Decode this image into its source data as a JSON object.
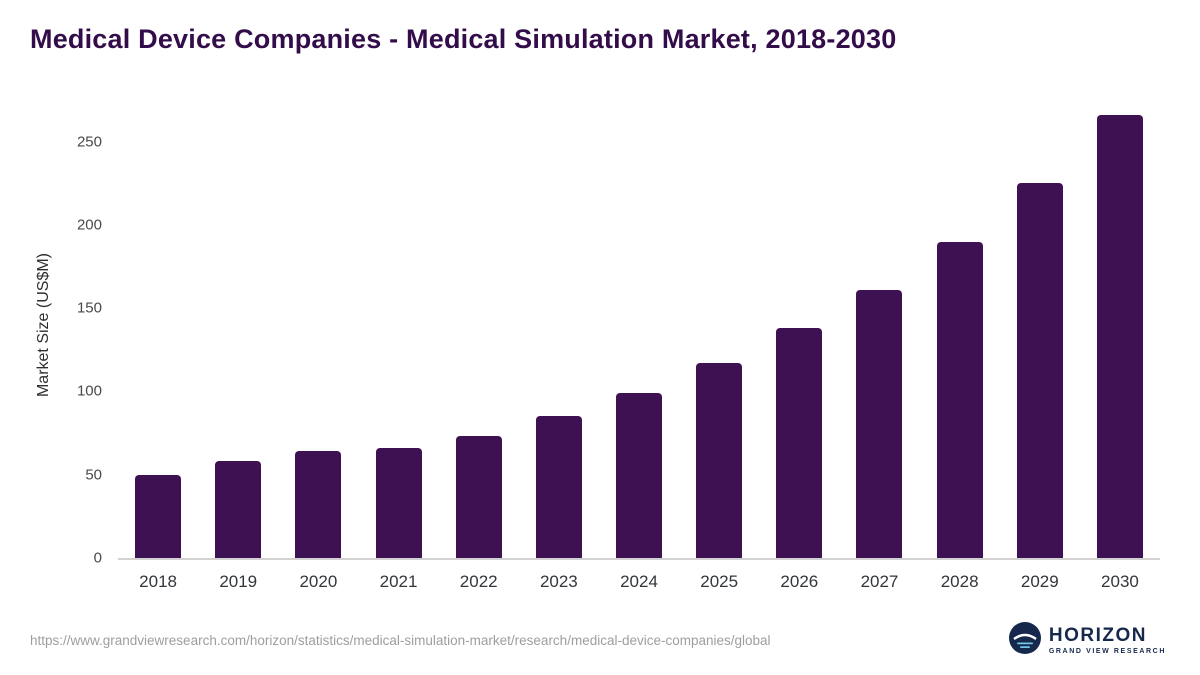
{
  "title": "Medical Device Companies - Medical Simulation Market, 2018-2030",
  "chart_data": {
    "type": "bar",
    "categories": [
      "2018",
      "2019",
      "2020",
      "2021",
      "2022",
      "2023",
      "2024",
      "2025",
      "2026",
      "2027",
      "2028",
      "2029",
      "2030"
    ],
    "values": [
      50,
      58,
      64,
      66,
      73,
      85,
      99,
      117,
      138,
      161,
      190,
      225,
      266
    ],
    "title": "Medical Device Companies - Medical Simulation Market, 2018-2030",
    "xlabel": "",
    "ylabel": "Market Size (US$M)",
    "ylim": [
      0,
      275
    ],
    "yticks": [
      0,
      50,
      100,
      150,
      200,
      250
    ],
    "grid": false,
    "legend": "none",
    "bar_color": "#3e1153"
  },
  "colors": {
    "title": "#330d49",
    "bar": "#3e1153",
    "axis_text": "#494949",
    "footer_text": "#9e9e9e",
    "logo_navy": "#16294c"
  },
  "footer": {
    "source_url": "https://www.grandviewresearch.com/horizon/statistics/medical-simulation-market/research/medical-device-companies/global",
    "logo_title": "HORIZON",
    "logo_subtitle": "GRAND VIEW RESEARCH"
  }
}
